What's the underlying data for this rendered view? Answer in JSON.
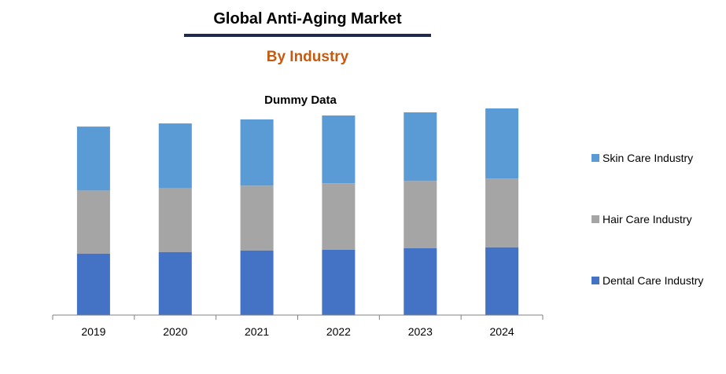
{
  "header": {
    "title": "Global Anti-Aging Market",
    "subtitle": "By Industry",
    "accent_color": "#c55a11",
    "rule_color": "#1f2a4c"
  },
  "chart_data": {
    "type": "bar",
    "stacked": true,
    "title": "Dummy Data",
    "categories": [
      "2019",
      "2020",
      "2021",
      "2022",
      "2023",
      "2024"
    ],
    "series": [
      {
        "name": "Dental Care Industry",
        "color": "#4472c4",
        "values": [
          78,
          80,
          82,
          83,
          85,
          86
        ]
      },
      {
        "name": "Hair Care Industry",
        "color": "#a5a5a5",
        "values": [
          80,
          81,
          82,
          84,
          85,
          87
        ]
      },
      {
        "name": "Skin Care Industry",
        "color": "#5b9bd5",
        "values": [
          81,
          82,
          84,
          86,
          87,
          89
        ]
      }
    ],
    "legend_order": [
      "Skin Care Industry",
      "Hair Care Industry",
      "Dental Care Industry"
    ],
    "ylim": [
      0,
      260
    ],
    "grid": false,
    "legend_position": "right"
  }
}
